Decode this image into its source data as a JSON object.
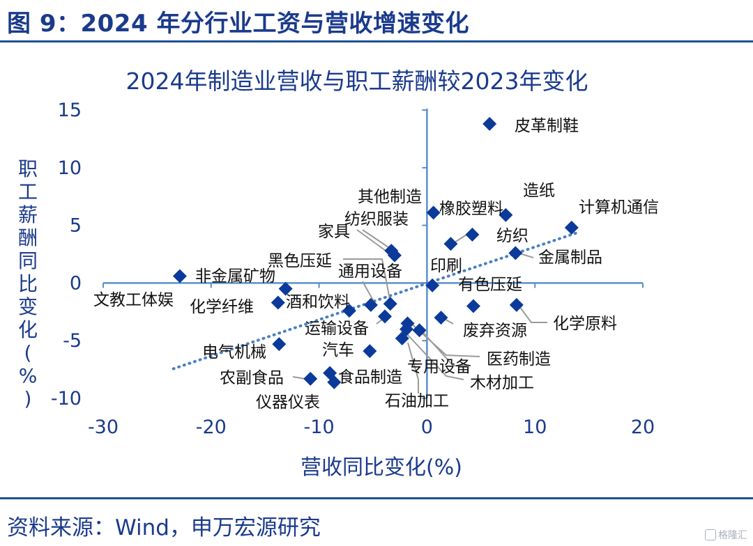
{
  "figure_title": "图 9：2024 年分行业工资与营收增速变化",
  "source_note": "资料来源：Wind，申万宏源研究",
  "watermark": "格隆汇",
  "colors": {
    "accent": "#1a3a8c",
    "marker": "#0b3a9a",
    "axis": "#5b8fc9",
    "trend": "#4a7fc1",
    "leader": "#9a9a9a"
  },
  "chart_data": {
    "type": "scatter",
    "title": "2024年制造业营收与职工薪酬较2023年变化",
    "xlabel": "营收同比变化(%)",
    "ylabel": "职工薪酬同比变化(%)",
    "xlim": [
      -30,
      20
    ],
    "ylim": [
      -10,
      15
    ],
    "xticks": [
      "-30",
      "-20",
      "-10",
      "0",
      "10",
      "20"
    ],
    "yticks": [
      "15",
      "10",
      "5",
      "0",
      "-5",
      "-10"
    ],
    "trendline": "dotted linear",
    "points": [
      {
        "label": "皮革制鞋",
        "x": 5.8,
        "y": 13.8
      },
      {
        "label": "造纸",
        "x": 7.3,
        "y": 5.9
      },
      {
        "label": "计算机通信",
        "x": 13.4,
        "y": 4.8
      },
      {
        "label": "其他制造",
        "x": 0.6,
        "y": 6.1
      },
      {
        "label": "橡胶塑料",
        "x": 4.2,
        "y": 4.2
      },
      {
        "label": "纺织",
        "x": 2.2,
        "y": 3.4
      },
      {
        "label": "金属制品",
        "x": 8.2,
        "y": 2.6
      },
      {
        "label": "纺织服装",
        "x": -3.3,
        "y": 2.8
      },
      {
        "label": "家具",
        "x": -3.0,
        "y": 2.4
      },
      {
        "label": "非金属矿物",
        "x": -22.9,
        "y": 0.6
      },
      {
        "label": "文教工体娱",
        "x": -13.1,
        "y": -0.5
      },
      {
        "label": "印刷",
        "x": 0.5,
        "y": -0.2
      },
      {
        "label": "黑色压延",
        "x": -3.4,
        "y": -1.8
      },
      {
        "label": "通用设备",
        "x": -5.2,
        "y": -1.9
      },
      {
        "label": "有色压延",
        "x": 4.3,
        "y": -2.0
      },
      {
        "label": "化学原料",
        "x": 8.3,
        "y": -1.9
      },
      {
        "label": "化学纤维",
        "x": -13.8,
        "y": -1.7
      },
      {
        "label": "酒和饮料",
        "x": -7.2,
        "y": -2.4
      },
      {
        "label": "运输设备",
        "x": -3.9,
        "y": -2.9
      },
      {
        "label": "废弃资源",
        "x": 1.3,
        "y": -3.0
      },
      {
        "label": "医药制造",
        "x": -1.8,
        "y": -3.5
      },
      {
        "label": "专用设备",
        "x": -0.7,
        "y": -4.1
      },
      {
        "label": "木材加工",
        "x": -2.3,
        "y": -4.8
      },
      {
        "label": "电气机械",
        "x": -13.7,
        "y": -5.3
      },
      {
        "label": "汽车",
        "x": -5.3,
        "y": -5.9
      },
      {
        "label": "食品制造",
        "x": -9.0,
        "y": -7.8
      },
      {
        "label": "农副食品",
        "x": -10.8,
        "y": -8.3
      },
      {
        "label": "仪器仪表",
        "x": -8.6,
        "y": -8.6
      },
      {
        "label": "石油加工",
        "x": -1.9,
        "y": -4.0
      }
    ]
  }
}
